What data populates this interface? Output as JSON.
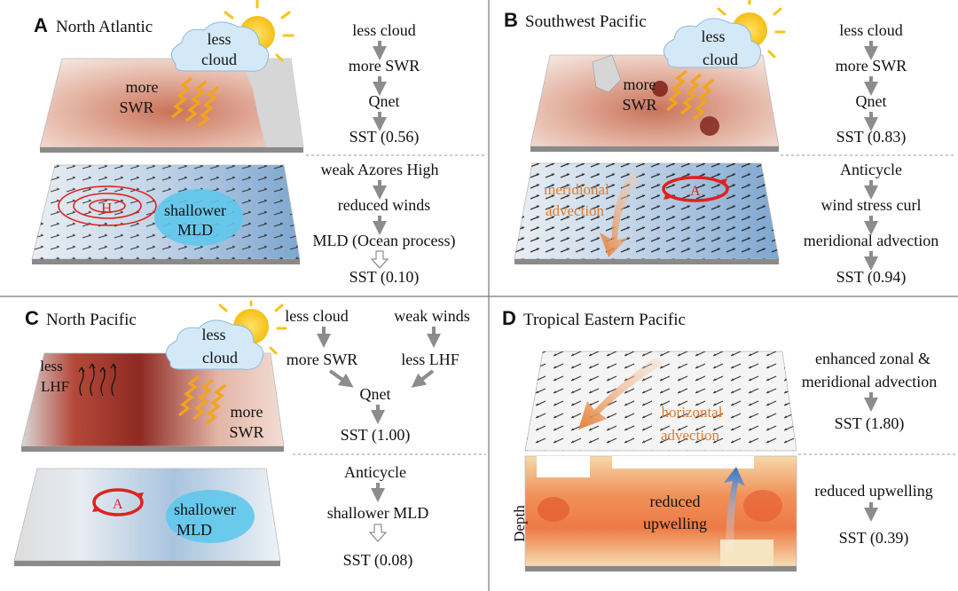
{
  "panels": {
    "a": {
      "letter": "A",
      "title": "North Atlantic",
      "cloud_text": [
        "less",
        "cloud"
      ],
      "map_text": [
        "more",
        "SWR"
      ],
      "high_label": "H",
      "mld_text": [
        "shallower",
        "MLD"
      ],
      "chain_top": [
        "less cloud",
        "more SWR",
        "Qnet",
        "SST (0.56)"
      ],
      "chain_bottom": [
        "weak Azores High",
        "reduced winds",
        "MLD (Ocean process)",
        "SST (0.10)"
      ]
    },
    "b": {
      "letter": "B",
      "title": "Southwest Pacific",
      "cloud_text": [
        "less",
        "cloud"
      ],
      "map_text": [
        "more",
        "SWR"
      ],
      "anticyclone_label": "A",
      "advection_text": [
        "meridional",
        "advection"
      ],
      "chain_top": [
        "less cloud",
        "more SWR",
        "Qnet",
        "SST (0.83)"
      ],
      "chain_bottom": [
        "Anticycle",
        "wind stress curl",
        "meridional advection",
        "SST (0.94)"
      ]
    },
    "c": {
      "letter": "C",
      "title": "North Pacific",
      "cloud_text": [
        "less",
        "cloud"
      ],
      "lhf_text": [
        "less",
        "LHF"
      ],
      "map_text": [
        "more",
        "SWR"
      ],
      "anticyclone_label": "A",
      "mld_text": [
        "shallower",
        "MLD"
      ],
      "chain_left": [
        "less cloud",
        "more SWR"
      ],
      "chain_right": [
        "weak winds",
        "less LHF"
      ],
      "chain_merge": [
        "Qnet",
        "SST (1.00)"
      ],
      "chain_bottom": [
        "Anticycle",
        "shallower MLD",
        "SST (0.08)"
      ]
    },
    "d": {
      "letter": "D",
      "title": "Tropical Eastern Pacific",
      "advection_text": [
        "horizontal",
        "advection"
      ],
      "upwelling_text": [
        "reduced",
        "upwelling"
      ],
      "depth_label": "Depth",
      "chain_top": [
        "enhanced zonal &",
        "meridional advection",
        "SST (1.80)"
      ],
      "chain_bottom": [
        "reduced upwelling",
        "SST (0.39)"
      ]
    }
  },
  "colors": {
    "arrow_gray": "#8c8c8c",
    "dash": "#999999",
    "sun": "#f5c518",
    "swr_wave": "#f2a51a",
    "cloud": "#cfe6f7",
    "mld_blue": "#5fc8ec",
    "anticyclone_red": "#e0211c",
    "warm_red": "#c2543f",
    "cold_blue": "#4a7fb5",
    "advection_orange": "#e07a2a"
  }
}
